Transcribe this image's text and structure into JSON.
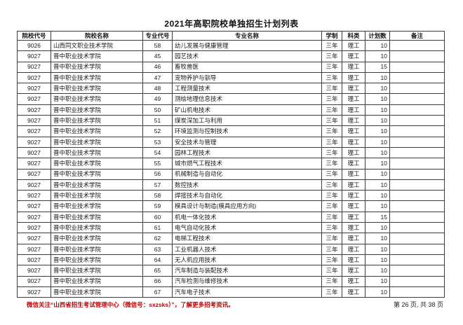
{
  "title": "2021年高职院校单独招生计划列表",
  "table": {
    "columns": [
      "院校代号",
      "院校名称",
      "专业代号",
      "专业名称",
      "学制",
      "科类",
      "计划数",
      "备注"
    ],
    "rows": [
      [
        "9026",
        "山西同文职业技术学院",
        "58",
        "幼儿发展与健康管理",
        "三年",
        "理工",
        "10",
        ""
      ],
      [
        "9027",
        "晋中职业技术学院",
        "45",
        "园艺技术",
        "三年",
        "理工",
        "10",
        ""
      ],
      [
        "9027",
        "晋中职业技术学院",
        "46",
        "畜牧兽医",
        "三年",
        "理工",
        "15",
        ""
      ],
      [
        "9027",
        "晋中职业技术学院",
        "47",
        "宠物养护与驯导",
        "三年",
        "理工",
        "10",
        ""
      ],
      [
        "9027",
        "晋中职业技术学院",
        "48",
        "工程测量技术",
        "三年",
        "理工",
        "10",
        ""
      ],
      [
        "9027",
        "晋中职业技术学院",
        "49",
        "测绘地理信息技术",
        "三年",
        "理工",
        "10",
        ""
      ],
      [
        "9027",
        "晋中职业技术学院",
        "50",
        "矿山机电技术",
        "三年",
        "理工",
        "10",
        ""
      ],
      [
        "9027",
        "晋中职业技术学院",
        "51",
        "煤炭深加工与利用",
        "三年",
        "理工",
        "10",
        ""
      ],
      [
        "9027",
        "晋中职业技术学院",
        "52",
        "环境监测与控制技术",
        "三年",
        "理工",
        "10",
        ""
      ],
      [
        "9027",
        "晋中职业技术学院",
        "53",
        "安全技术与管理",
        "三年",
        "理工",
        "10",
        ""
      ],
      [
        "9027",
        "晋中职业技术学院",
        "54",
        "园林工程技术",
        "三年",
        "理工",
        "10",
        ""
      ],
      [
        "9027",
        "晋中职业技术学院",
        "55",
        "城市燃气工程技术",
        "三年",
        "理工",
        "10",
        ""
      ],
      [
        "9027",
        "晋中职业技术学院",
        "56",
        "机械制造与自动化",
        "三年",
        "理工",
        "10",
        ""
      ],
      [
        "9027",
        "晋中职业技术学院",
        "57",
        "数控技术",
        "三年",
        "理工",
        "10",
        ""
      ],
      [
        "9027",
        "晋中职业技术学院",
        "58",
        "焊接技术与自动化",
        "三年",
        "理工",
        "10",
        ""
      ],
      [
        "9027",
        "晋中职业技术学院",
        "59",
        "模具设计与制造(模具应用方向)",
        "三年",
        "理工",
        "10",
        ""
      ],
      [
        "9027",
        "晋中职业技术学院",
        "60",
        "机电一体化技术",
        "三年",
        "理工",
        "15",
        ""
      ],
      [
        "9027",
        "晋中职业技术学院",
        "61",
        "电气自动化技术",
        "三年",
        "理工",
        "10",
        ""
      ],
      [
        "9027",
        "晋中职业技术学院",
        "62",
        "电梯工程技术",
        "三年",
        "理工",
        "10",
        ""
      ],
      [
        "9027",
        "晋中职业技术学院",
        "63",
        "工业机器人技术",
        "三年",
        "理工",
        "10",
        ""
      ],
      [
        "9027",
        "晋中职业技术学院",
        "64",
        "无人机应用技术",
        "三年",
        "理工",
        "10",
        ""
      ],
      [
        "9027",
        "晋中职业技术学院",
        "65",
        "汽车制造与装配技术",
        "三年",
        "理工",
        "10",
        ""
      ],
      [
        "9027",
        "晋中职业技术学院",
        "66",
        "汽车检测与维修技术",
        "三年",
        "理工",
        "10",
        ""
      ],
      [
        "9027",
        "晋中职业技术学院",
        "67",
        "汽车电子技术",
        "三年",
        "理工",
        "10",
        ""
      ]
    ]
  },
  "footer": {
    "notice": "微信关注“山西省招生考试管理中心（微信号：sxzsks）”，了解更多招考资讯。",
    "notice_color": "#c00000",
    "page_info": "第 26 页, 共 38 页"
  }
}
